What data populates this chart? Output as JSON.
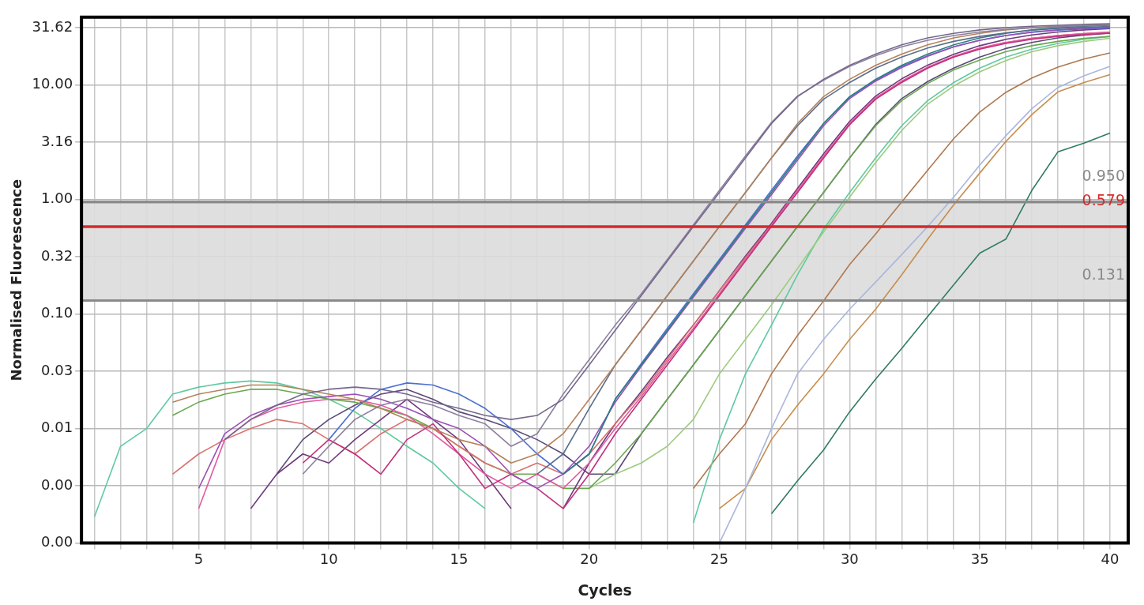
{
  "chart_data": {
    "type": "line",
    "xlabel": "Cycles",
    "ylabel": "Normalised Fluorescence",
    "log": "y",
    "grid": true,
    "legend": false,
    "x": [
      1,
      2,
      3,
      4,
      5,
      6,
      7,
      8,
      9,
      10,
      11,
      12,
      13,
      14,
      15,
      16,
      17,
      18,
      19,
      20,
      21,
      22,
      23,
      24,
      25,
      26,
      27,
      28,
      29,
      30,
      31,
      32,
      33,
      34,
      35,
      36,
      37,
      38,
      39,
      40
    ],
    "xlim": [
      0.5,
      40.7
    ],
    "xticks": [
      {
        "value": 1,
        "label": null
      },
      {
        "value": 2,
        "label": null
      },
      {
        "value": 3,
        "label": null
      },
      {
        "value": 4,
        "label": null
      },
      5,
      {
        "value": 6,
        "label": null
      },
      {
        "value": 7,
        "label": null
      },
      {
        "value": 8,
        "label": null
      },
      {
        "value": 9,
        "label": null
      },
      10,
      {
        "value": 11,
        "label": null
      },
      {
        "value": 12,
        "label": null
      },
      {
        "value": 13,
        "label": null
      },
      {
        "value": 14,
        "label": null
      },
      15,
      {
        "value": 16,
        "label": null
      },
      {
        "value": 17,
        "label": null
      },
      {
        "value": 18,
        "label": null
      },
      {
        "value": 19,
        "label": null
      },
      20,
      {
        "value": 21,
        "label": null
      },
      {
        "value": 22,
        "label": null
      },
      {
        "value": 23,
        "label": null
      },
      {
        "value": 24,
        "label": null
      },
      25,
      {
        "value": 26,
        "label": null
      },
      {
        "value": 27,
        "label": null
      },
      {
        "value": 28,
        "label": null
      },
      {
        "value": 29,
        "label": null
      },
      30,
      {
        "value": 31,
        "label": null
      },
      {
        "value": 32,
        "label": null
      },
      {
        "value": 33,
        "label": null
      },
      {
        "value": 34,
        "label": null
      },
      35,
      {
        "value": 36,
        "label": null
      },
      {
        "value": 37,
        "label": null
      },
      {
        "value": 38,
        "label": null
      },
      {
        "value": 39,
        "label": null
      },
      40
    ],
    "ylim": [
      0.001,
      39
    ],
    "yticks": [
      {
        "value": 0.001,
        "label": "0.00"
      },
      {
        "value": 0.003162,
        "label": "0.00"
      },
      0.01,
      {
        "value": 0.03162,
        "label": "0.03"
      },
      {
        "value": 0.1,
        "label": "0.10"
      },
      {
        "value": 0.3162,
        "label": "0.32"
      },
      {
        "value": 1,
        "label": "1.00"
      },
      3.16,
      {
        "value": 10,
        "label": "10.00"
      },
      31.62
    ],
    "bands": [
      {
        "axis": "y",
        "from": 0.131,
        "to": 0.95,
        "color": "#dcdcdc"
      }
    ],
    "ref_lines": [
      {
        "axis": "y",
        "value": 0.95,
        "label": "0.950",
        "color": "#8a8a8a"
      },
      {
        "axis": "y",
        "value": 0.579,
        "label": "0.579",
        "color": "#d42a2a"
      },
      {
        "axis": "y",
        "value": 0.131,
        "label": "0.131",
        "color": "#8a8a8a"
      }
    ],
    "series": [
      {
        "color": "#76688c",
        "values": [
          null,
          null,
          null,
          null,
          null,
          0.008,
          0.012,
          0.016,
          0.02,
          0.022,
          0.023,
          0.022,
          0.02,
          0.017,
          0.015,
          0.013,
          0.012,
          0.013,
          0.018,
          0.036,
          0.072,
          0.145,
          0.29,
          0.58,
          1.15,
          2.3,
          4.6,
          7.9,
          11.2,
          14.8,
          18.6,
          22.4,
          25.7,
          28.2,
          30.2,
          31.6,
          32.5,
          33.2,
          33.8,
          34.2
        ]
      },
      {
        "color": "#8c7f9e",
        "values": [
          null,
          null,
          null,
          null,
          null,
          null,
          null,
          null,
          0.004,
          0.007,
          0.012,
          0.016,
          0.018,
          0.016,
          0.013,
          0.011,
          0.007,
          0.009,
          0.02,
          0.04,
          0.08,
          0.15,
          0.3,
          0.6,
          1.2,
          2.4,
          4.7,
          8.0,
          11.0,
          14.5,
          18.0,
          21.5,
          24.5,
          27.0,
          29.0,
          30.5,
          31.5,
          32.3,
          32.9,
          33.4
        ]
      },
      {
        "color": "#b5825a",
        "values": [
          null,
          null,
          null,
          0.017,
          0.02,
          0.022,
          0.024,
          0.024,
          0.022,
          0.02,
          0.018,
          0.015,
          0.012,
          0.01,
          0.008,
          0.007,
          0.005,
          0.006,
          0.009,
          0.018,
          0.036,
          0.072,
          0.145,
          0.29,
          0.58,
          1.15,
          2.3,
          4.6,
          7.9,
          11.2,
          14.8,
          18.6,
          22.4,
          25.7,
          28.2,
          30.2,
          31.6,
          32.5,
          33.2,
          33.8
        ]
      },
      {
        "color": "#5b6e8c",
        "values": [
          null,
          null,
          null,
          null,
          null,
          null,
          null,
          null,
          null,
          null,
          null,
          null,
          null,
          null,
          null,
          null,
          null,
          0.004,
          0.006,
          0.015,
          0.036,
          0.072,
          0.145,
          0.29,
          0.58,
          1.15,
          2.3,
          4.4,
          7.5,
          10.5,
          14.0,
          17.5,
          21.0,
          24.0,
          26.5,
          28.5,
          30.0,
          31.0,
          31.8,
          32.4
        ]
      },
      {
        "color": "#2e7f80",
        "values": [
          null,
          null,
          null,
          null,
          null,
          null,
          null,
          null,
          null,
          null,
          null,
          null,
          null,
          null,
          null,
          null,
          null,
          null,
          0.004,
          0.006,
          0.018,
          0.036,
          0.072,
          0.145,
          0.29,
          0.58,
          1.15,
          2.3,
          4.6,
          7.9,
          11.2,
          14.8,
          18.6,
          22.4,
          25.7,
          28.2,
          30.2,
          31.6,
          32.5,
          33.2
        ]
      },
      {
        "color": "#9b4fb5",
        "values": [
          null,
          null,
          null,
          null,
          0.003,
          0.009,
          0.013,
          0.016,
          0.018,
          0.019,
          0.02,
          0.018,
          0.015,
          0.012,
          0.01,
          0.007,
          0.004,
          0.003,
          0.004,
          0.007,
          0.017,
          0.035,
          0.07,
          0.14,
          0.28,
          0.56,
          1.1,
          2.2,
          4.4,
          7.6,
          10.8,
          14.2,
          17.8,
          21.5,
          24.5,
          27.0,
          29.0,
          30.3,
          31.2,
          31.8
        ]
      },
      {
        "color": "#4c6fd3",
        "values": [
          null,
          null,
          null,
          null,
          null,
          null,
          null,
          null,
          null,
          0.008,
          0.015,
          0.022,
          0.025,
          0.024,
          0.02,
          0.015,
          0.01,
          0.006,
          0.004,
          0.006,
          0.018,
          0.037,
          0.075,
          0.15,
          0.3,
          0.6,
          1.2,
          2.4,
          4.6,
          7.8,
          11.0,
          14.5,
          18.0,
          21.5,
          24.5,
          27.0,
          28.8,
          30.0,
          30.8,
          31.4
        ]
      },
      {
        "color": "#c2307c",
        "values": [
          null,
          null,
          null,
          null,
          null,
          null,
          null,
          null,
          0.005,
          0.008,
          0.006,
          0.004,
          0.008,
          0.011,
          0.006,
          0.003,
          0.004,
          0.003,
          0.002,
          0.004,
          0.009,
          0.018,
          0.036,
          0.072,
          0.145,
          0.29,
          0.58,
          1.15,
          2.3,
          4.5,
          7.5,
          10.5,
          14.0,
          17.5,
          20.5,
          23.0,
          25.0,
          26.5,
          27.5,
          28.3
        ]
      },
      {
        "color": "#e35a9f",
        "values": [
          null,
          null,
          null,
          null,
          0.002,
          0.008,
          0.012,
          0.015,
          0.017,
          0.018,
          0.018,
          0.016,
          0.013,
          0.009,
          0.006,
          0.004,
          0.003,
          0.004,
          0.003,
          0.005,
          0.01,
          0.019,
          0.038,
          0.075,
          0.15,
          0.3,
          0.6,
          1.2,
          2.4,
          4.6,
          7.7,
          10.8,
          14.3,
          17.8,
          21.0,
          23.5,
          25.5,
          27.0,
          28.0,
          28.8
        ]
      },
      {
        "color": "#d9716e",
        "values": [
          null,
          null,
          null,
          0.004,
          0.006,
          0.008,
          0.01,
          0.012,
          0.011,
          0.008,
          0.006,
          0.009,
          0.012,
          0.01,
          0.007,
          0.005,
          0.004,
          0.005,
          0.004,
          0.006,
          0.011,
          0.02,
          0.04,
          0.08,
          0.16,
          0.31,
          0.6,
          1.2,
          2.3,
          4.5,
          7.6,
          10.7,
          14.2,
          17.6,
          20.8,
          23.4,
          25.5,
          27.0,
          28.1,
          29.0
        ]
      },
      {
        "color": "#6e3a7e",
        "values": [
          null,
          null,
          null,
          null,
          null,
          null,
          0.002,
          0.004,
          0.006,
          0.005,
          0.008,
          0.012,
          0.018,
          0.012,
          0.008,
          0.004,
          0.002,
          null,
          0.002,
          0.005,
          0.011,
          0.021,
          0.042,
          0.08,
          0.16,
          0.32,
          0.62,
          1.25,
          2.5,
          4.8,
          8.0,
          11.3,
          14.9,
          18.5,
          22.0,
          25.0,
          27.3,
          29.0,
          30.2,
          31.0
        ]
      },
      {
        "color": "#6aa84f",
        "values": [
          null,
          null,
          null,
          0.013,
          0.017,
          0.02,
          0.022,
          0.022,
          0.02,
          0.018,
          0.017,
          0.015,
          0.013,
          0.01,
          0.007,
          0.005,
          0.004,
          0.004,
          0.003,
          0.003,
          0.005,
          0.009,
          0.018,
          0.036,
          0.072,
          0.145,
          0.29,
          0.58,
          1.15,
          2.3,
          4.4,
          7.3,
          10.3,
          13.5,
          16.5,
          19.5,
          22.0,
          24.0,
          25.5,
          26.5
        ]
      },
      {
        "color": "#9ccb7d",
        "values": [
          null,
          null,
          null,
          null,
          null,
          null,
          null,
          null,
          null,
          null,
          null,
          null,
          null,
          null,
          null,
          null,
          null,
          null,
          null,
          0.003,
          0.004,
          0.005,
          0.007,
          0.012,
          0.03,
          0.06,
          0.12,
          0.25,
          0.52,
          1.05,
          2.1,
          4.0,
          6.8,
          9.8,
          13.0,
          16.3,
          19.5,
          22.0,
          24.0,
          25.5
        ]
      },
      {
        "color": "#5a4a78",
        "values": [
          null,
          null,
          null,
          null,
          null,
          null,
          null,
          0.004,
          0.008,
          0.012,
          0.016,
          0.02,
          0.022,
          0.018,
          0.014,
          0.012,
          0.01,
          0.008,
          0.006,
          0.004,
          0.004,
          0.009,
          0.018,
          0.036,
          0.072,
          0.145,
          0.29,
          0.58,
          1.15,
          2.3,
          4.5,
          7.6,
          10.7,
          14.0,
          17.5,
          20.8,
          23.5,
          25.7,
          27.2,
          28.3
        ]
      },
      {
        "color": "#5fc9a0",
        "values": [
          0.0017,
          0.007,
          0.01,
          0.02,
          0.023,
          0.025,
          0.026,
          0.025,
          0.022,
          0.018,
          0.014,
          0.01,
          0.007,
          0.005,
          0.003,
          0.002,
          null,
          null,
          null,
          null,
          null,
          null,
          null,
          0.0015,
          0.008,
          0.03,
          0.08,
          0.22,
          0.55,
          1.15,
          2.3,
          4.4,
          7.3,
          10.5,
          14.0,
          17.5,
          20.5,
          23.0,
          25.0,
          26.5
        ]
      },
      {
        "color": "#b0784e",
        "values": [
          null,
          null,
          null,
          null,
          null,
          null,
          null,
          null,
          null,
          null,
          null,
          null,
          null,
          null,
          null,
          null,
          null,
          null,
          null,
          null,
          null,
          null,
          null,
          0.003,
          0.006,
          0.011,
          0.03,
          0.065,
          0.13,
          0.27,
          0.5,
          0.95,
          1.8,
          3.4,
          5.8,
          8.6,
          11.5,
          14.3,
          16.8,
          19.0
        ]
      },
      {
        "color": "#aab6dc",
        "values": [
          null,
          null,
          null,
          null,
          null,
          null,
          null,
          null,
          null,
          null,
          null,
          null,
          null,
          null,
          null,
          null,
          null,
          null,
          null,
          null,
          null,
          null,
          null,
          null,
          0.001,
          0.003,
          0.01,
          0.03,
          0.06,
          0.11,
          0.19,
          0.33,
          0.58,
          1.05,
          2.0,
          3.6,
          6.2,
          9.5,
          12.0,
          14.5
        ]
      },
      {
        "color": "#c78d4c",
        "values": [
          null,
          null,
          null,
          null,
          null,
          null,
          null,
          null,
          null,
          null,
          null,
          null,
          null,
          null,
          null,
          null,
          null,
          null,
          null,
          null,
          null,
          null,
          null,
          null,
          0.002,
          0.003,
          0.008,
          0.016,
          0.03,
          0.06,
          0.11,
          0.22,
          0.45,
          0.9,
          1.7,
          3.2,
          5.5,
          8.7,
          10.5,
          12.3
        ]
      },
      {
        "color": "#2e7b62",
        "values": [
          null,
          null,
          null,
          null,
          null,
          null,
          null,
          null,
          null,
          null,
          null,
          null,
          null,
          null,
          null,
          null,
          null,
          null,
          null,
          null,
          null,
          null,
          null,
          null,
          null,
          null,
          0.0018,
          0.0035,
          0.0065,
          0.014,
          0.027,
          0.05,
          0.095,
          0.18,
          0.34,
          0.45,
          1.2,
          2.6,
          3.1,
          3.8
        ]
      }
    ]
  }
}
